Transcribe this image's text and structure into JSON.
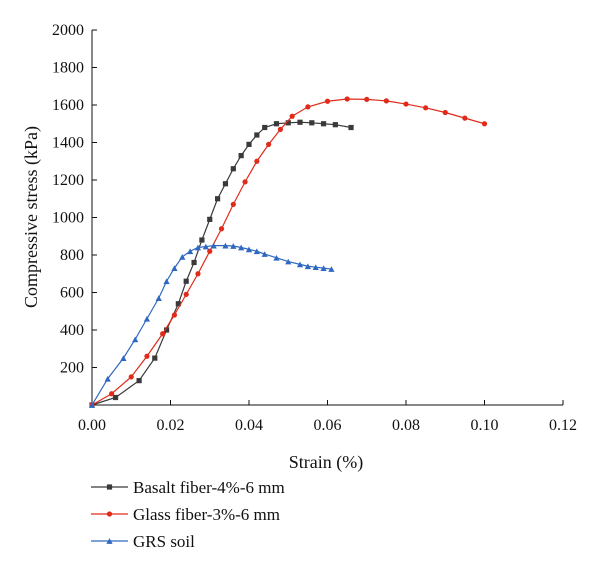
{
  "chart_data": {
    "type": "scatter",
    "title": "",
    "xlabel": "Strain (%)",
    "ylabel": "Compressive stress (kPa)",
    "xlim": [
      0,
      0.12
    ],
    "ylim": [
      0,
      2000
    ],
    "x_ticks": [
      0.0,
      0.02,
      0.04,
      0.06,
      0.08,
      0.1,
      0.12
    ],
    "x_tick_labels": [
      "0.00",
      "0.02",
      "0.04",
      "0.06",
      "0.08",
      "0.10",
      "0.12"
    ],
    "y_ticks": [
      200,
      400,
      600,
      800,
      1000,
      1200,
      1400,
      1600,
      1800,
      2000
    ],
    "y_tick_labels": [
      "200",
      "400",
      "600",
      "800",
      "1000",
      "1200",
      "1400",
      "1600",
      "1800",
      "2000"
    ],
    "grid": false,
    "legend_position": "bottom-left",
    "series": [
      {
        "name": "Basalt fiber-4%-6 mm",
        "color": "#3a3a3a",
        "marker": "square",
        "x": [
          0.0,
          0.006,
          0.012,
          0.016,
          0.019,
          0.022,
          0.024,
          0.026,
          0.028,
          0.03,
          0.032,
          0.034,
          0.036,
          0.038,
          0.04,
          0.042,
          0.044,
          0.047,
          0.05,
          0.053,
          0.056,
          0.059,
          0.062,
          0.066
        ],
        "y": [
          0,
          40,
          130,
          250,
          400,
          540,
          660,
          760,
          880,
          990,
          1100,
          1180,
          1260,
          1330,
          1390,
          1440,
          1480,
          1500,
          1505,
          1508,
          1505,
          1500,
          1495,
          1480
        ]
      },
      {
        "name": "Glass fiber-3%-6 mm",
        "color": "#e02b1a",
        "marker": "circle",
        "x": [
          0.0,
          0.005,
          0.01,
          0.014,
          0.018,
          0.021,
          0.024,
          0.027,
          0.03,
          0.033,
          0.036,
          0.039,
          0.042,
          0.045,
          0.048,
          0.051,
          0.055,
          0.06,
          0.065,
          0.07,
          0.075,
          0.08,
          0.085,
          0.09,
          0.095,
          0.1
        ],
        "y": [
          0,
          60,
          150,
          260,
          380,
          480,
          590,
          700,
          820,
          940,
          1070,
          1190,
          1300,
          1390,
          1470,
          1540,
          1590,
          1620,
          1632,
          1630,
          1622,
          1605,
          1585,
          1560,
          1530,
          1500
        ]
      },
      {
        "name": "GRS soil",
        "color": "#2f68c0",
        "marker": "triangle",
        "x": [
          0.0,
          0.004,
          0.008,
          0.011,
          0.014,
          0.017,
          0.019,
          0.021,
          0.023,
          0.025,
          0.027,
          0.029,
          0.031,
          0.034,
          0.036,
          0.038,
          0.04,
          0.042,
          0.044,
          0.047,
          0.05,
          0.053,
          0.055,
          0.057,
          0.059,
          0.061
        ],
        "y": [
          0,
          140,
          250,
          350,
          460,
          570,
          660,
          730,
          790,
          820,
          840,
          845,
          850,
          850,
          848,
          840,
          830,
          820,
          805,
          785,
          765,
          750,
          740,
          735,
          730,
          725
        ]
      }
    ]
  }
}
